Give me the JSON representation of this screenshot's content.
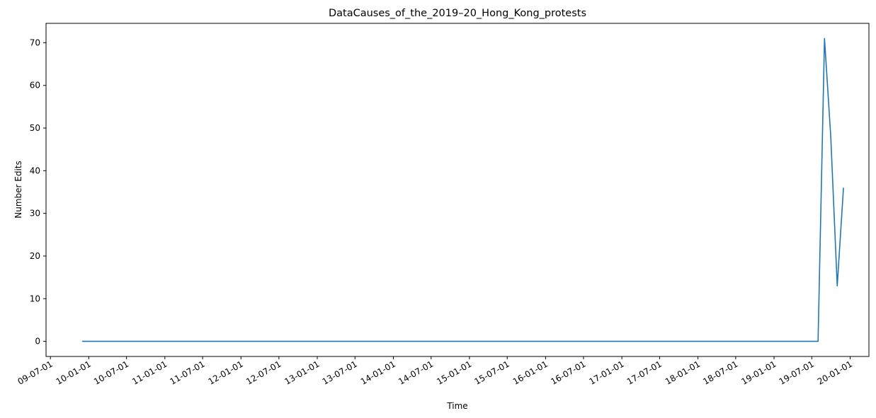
{
  "chart_data": {
    "type": "line",
    "title": "DataCauses_of_the_2019–20_Hong_Kong_protests",
    "xlabel": "Time",
    "ylabel": "Number Edits",
    "xlim": [
      "2009-06-10",
      "2020-03-31"
    ],
    "ylim": [
      -3.55,
      74.55
    ],
    "grid": false,
    "legend": "none",
    "line_color": "#1f77b4",
    "x_ticks": [
      {
        "date": "2009-07-01",
        "label": "09-07-01"
      },
      {
        "date": "2010-01-01",
        "label": "10-01-01"
      },
      {
        "date": "2010-07-01",
        "label": "10-07-01"
      },
      {
        "date": "2011-01-01",
        "label": "11-01-01"
      },
      {
        "date": "2011-07-01",
        "label": "11-07-01"
      },
      {
        "date": "2012-01-01",
        "label": "12-01-01"
      },
      {
        "date": "2012-07-01",
        "label": "12-07-01"
      },
      {
        "date": "2013-01-01",
        "label": "13-01-01"
      },
      {
        "date": "2013-07-01",
        "label": "13-07-01"
      },
      {
        "date": "2014-01-01",
        "label": "14-01-01"
      },
      {
        "date": "2014-07-01",
        "label": "14-07-01"
      },
      {
        "date": "2015-01-01",
        "label": "15-01-01"
      },
      {
        "date": "2015-07-01",
        "label": "15-07-01"
      },
      {
        "date": "2016-01-01",
        "label": "16-01-01"
      },
      {
        "date": "2016-07-01",
        "label": "16-07-01"
      },
      {
        "date": "2017-01-01",
        "label": "17-01-01"
      },
      {
        "date": "2017-07-01",
        "label": "17-07-01"
      },
      {
        "date": "2018-01-01",
        "label": "18-01-01"
      },
      {
        "date": "2018-07-01",
        "label": "18-07-01"
      },
      {
        "date": "2019-01-01",
        "label": "19-01-01"
      },
      {
        "date": "2019-07-01",
        "label": "19-07-01"
      },
      {
        "date": "2020-01-01",
        "label": "20-01-01"
      }
    ],
    "y_ticks": [
      0,
      10,
      20,
      30,
      40,
      50,
      60,
      70
    ],
    "series": [
      {
        "points": [
          {
            "x": "2009-11-30",
            "y": 0
          },
          {
            "x": "2019-07-31",
            "y": 0
          },
          {
            "x": "2019-08-31",
            "y": 71
          },
          {
            "x": "2019-09-30",
            "y": 48
          },
          {
            "x": "2019-10-31",
            "y": 13
          },
          {
            "x": "2019-11-30",
            "y": 36
          }
        ]
      }
    ]
  }
}
